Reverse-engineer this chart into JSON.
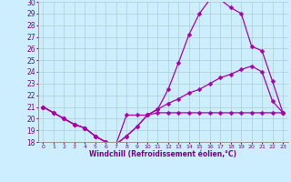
{
  "xlabel": "Windchill (Refroidissement éolien,°C)",
  "x_values": [
    0,
    1,
    2,
    3,
    4,
    5,
    6,
    7,
    8,
    9,
    10,
    11,
    12,
    13,
    14,
    15,
    16,
    17,
    18,
    19,
    20,
    21,
    22,
    23
  ],
  "line1_y": [
    21.0,
    20.5,
    20.0,
    19.5,
    19.2,
    18.5,
    18.0,
    17.8,
    18.5,
    19.3,
    20.3,
    20.8,
    21.3,
    21.7,
    22.2,
    22.5,
    23.0,
    23.5,
    23.8,
    24.2,
    24.5,
    24.0,
    21.5,
    20.5
  ],
  "line2_y": [
    21.0,
    20.5,
    20.0,
    19.5,
    19.2,
    18.5,
    18.0,
    17.8,
    18.5,
    19.3,
    20.3,
    20.8,
    22.5,
    24.8,
    27.2,
    29.0,
    30.2,
    30.2,
    29.5,
    29.0,
    26.2,
    25.8,
    23.2,
    20.5
  ],
  "line3_y": [
    21.0,
    20.5,
    20.0,
    19.5,
    19.2,
    18.5,
    18.0,
    17.8,
    20.3,
    20.3,
    20.3,
    20.5,
    20.5,
    20.5,
    20.5,
    20.5,
    20.5,
    20.5,
    20.5,
    20.5,
    20.5,
    20.5,
    20.5,
    20.5
  ],
  "bg_color": "#cceeff",
  "line_color": "#aa00aa",
  "grid_color": "#aacfcf",
  "ylim": [
    18,
    30
  ],
  "xlim_min": -0.5,
  "xlim_max": 23.5,
  "yticks": [
    18,
    19,
    20,
    21,
    22,
    23,
    24,
    25,
    26,
    27,
    28,
    29,
    30
  ],
  "xtick_fontsize": 4.5,
  "ytick_fontsize": 5.5,
  "xlabel_fontsize": 5.5,
  "marker_size": 2.5,
  "line_width": 0.9
}
